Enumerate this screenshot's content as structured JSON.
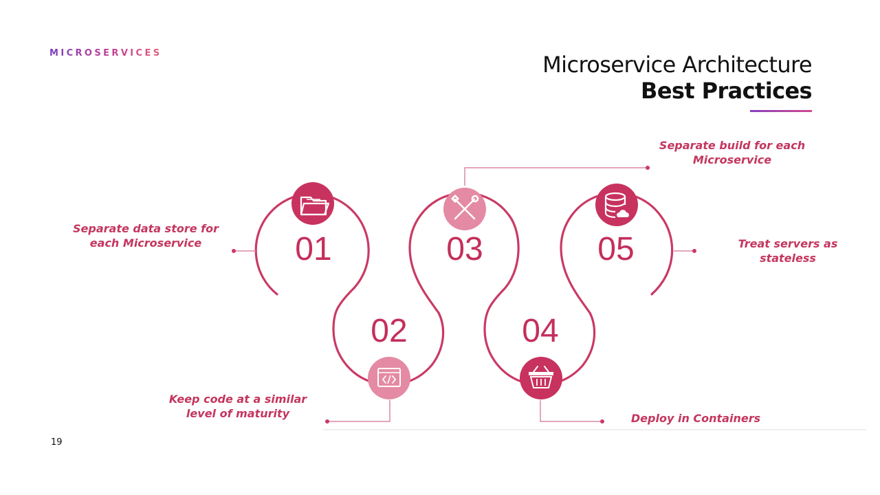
{
  "header": {
    "kicker": "MICROSERVICES",
    "title_line1": "Microservice Architecture",
    "title_line2": "Best Practices"
  },
  "steps": [
    {
      "number": "01",
      "label_line1": "Separate data store for",
      "label_line2": "each Microservice",
      "icon": "folder-icon"
    },
    {
      "number": "02",
      "label_line1": "Keep code at a similar",
      "label_line2": "level of maturity",
      "icon": "code-icon"
    },
    {
      "number": "03",
      "label_line1": "Separate build for each",
      "label_line2": "Microservice",
      "icon": "tools-icon"
    },
    {
      "number": "04",
      "label_line1": "",
      "label_line2": "Deploy in Containers",
      "icon": "basket-icon"
    },
    {
      "number": "05",
      "label_line1": "Treat servers as",
      "label_line2": "stateless",
      "icon": "database-cloud-icon"
    }
  ],
  "footer": {
    "page_number": "19"
  },
  "colors": {
    "primary": "#c93a64",
    "accent_purple": "#7b3fbd",
    "accent_pink": "#d04a8e"
  }
}
